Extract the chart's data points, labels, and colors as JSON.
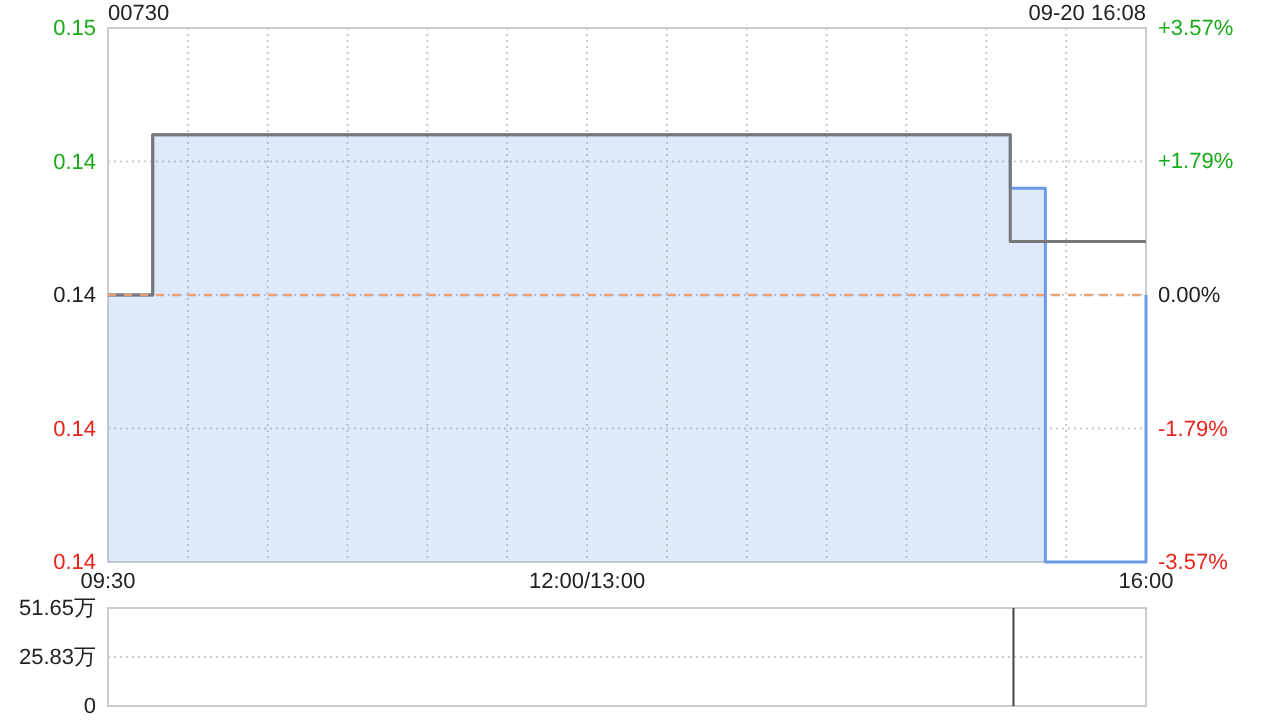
{
  "chart_data": [
    {
      "type": "step",
      "title": "00730",
      "annotations": [
        "09-20 16:08"
      ],
      "xlim": [
        9.5,
        16
      ],
      "xticks": [
        {
          "value": 9.5,
          "label": "09:30"
        },
        {
          "value": 12.5,
          "label": "12:00/13:00"
        },
        {
          "value": 16,
          "label": "16:00"
        }
      ],
      "ylim": [
        0.135,
        0.145
      ],
      "yticks": [
        {
          "value": 0.135,
          "label": "0.14"
        },
        {
          "value": 0.1375,
          "label": "0.14"
        },
        {
          "value": 0.14,
          "label": "0.14"
        },
        {
          "value": 0.1425,
          "label": "0.14"
        },
        {
          "value": 0.145,
          "label": "0.15"
        }
      ],
      "y2lim": [
        -3.57,
        3.57
      ],
      "y2ticks": [
        {
          "value": -3.57,
          "label": "-3.57%"
        },
        {
          "value": -1.79,
          "label": "-1.79%"
        },
        {
          "value": 0,
          "label": "0.00%"
        },
        {
          "value": 1.79,
          "label": "+1.79%"
        },
        {
          "value": 3.57,
          "label": "+3.57%"
        }
      ],
      "grid": true,
      "ref_lines": [
        {
          "axis": "y",
          "value": 0.14,
          "color": "#f0a070",
          "line_style": "dashed"
        }
      ],
      "series": [
        {
          "type": "area",
          "color": "#6b9be8",
          "x": [
            9.5,
            9.78,
            15.15,
            15.37,
            15.98,
            16
          ],
          "values": [
            0.14,
            0.143,
            0.142,
            0.135,
            0.135,
            0.14
          ]
        },
        {
          "color": "#777777",
          "x": [
            9.5,
            9.78,
            15.15,
            16
          ],
          "values": [
            0.14,
            0.143,
            0.141,
            0.141
          ]
        }
      ]
    },
    {
      "type": "bar",
      "x": [
        15.17
      ],
      "values": [
        51.65
      ],
      "color": "#444444",
      "xlim": [
        9.5,
        16
      ],
      "ylim": [
        0,
        51.65
      ],
      "yticks": [
        {
          "value": 0,
          "label": "0"
        },
        {
          "value": 25.83,
          "label": "25.83万"
        },
        {
          "value": 51.65,
          "label": "51.65万"
        }
      ],
      "grid": "y",
      "tick_labels": "y"
    }
  ]
}
